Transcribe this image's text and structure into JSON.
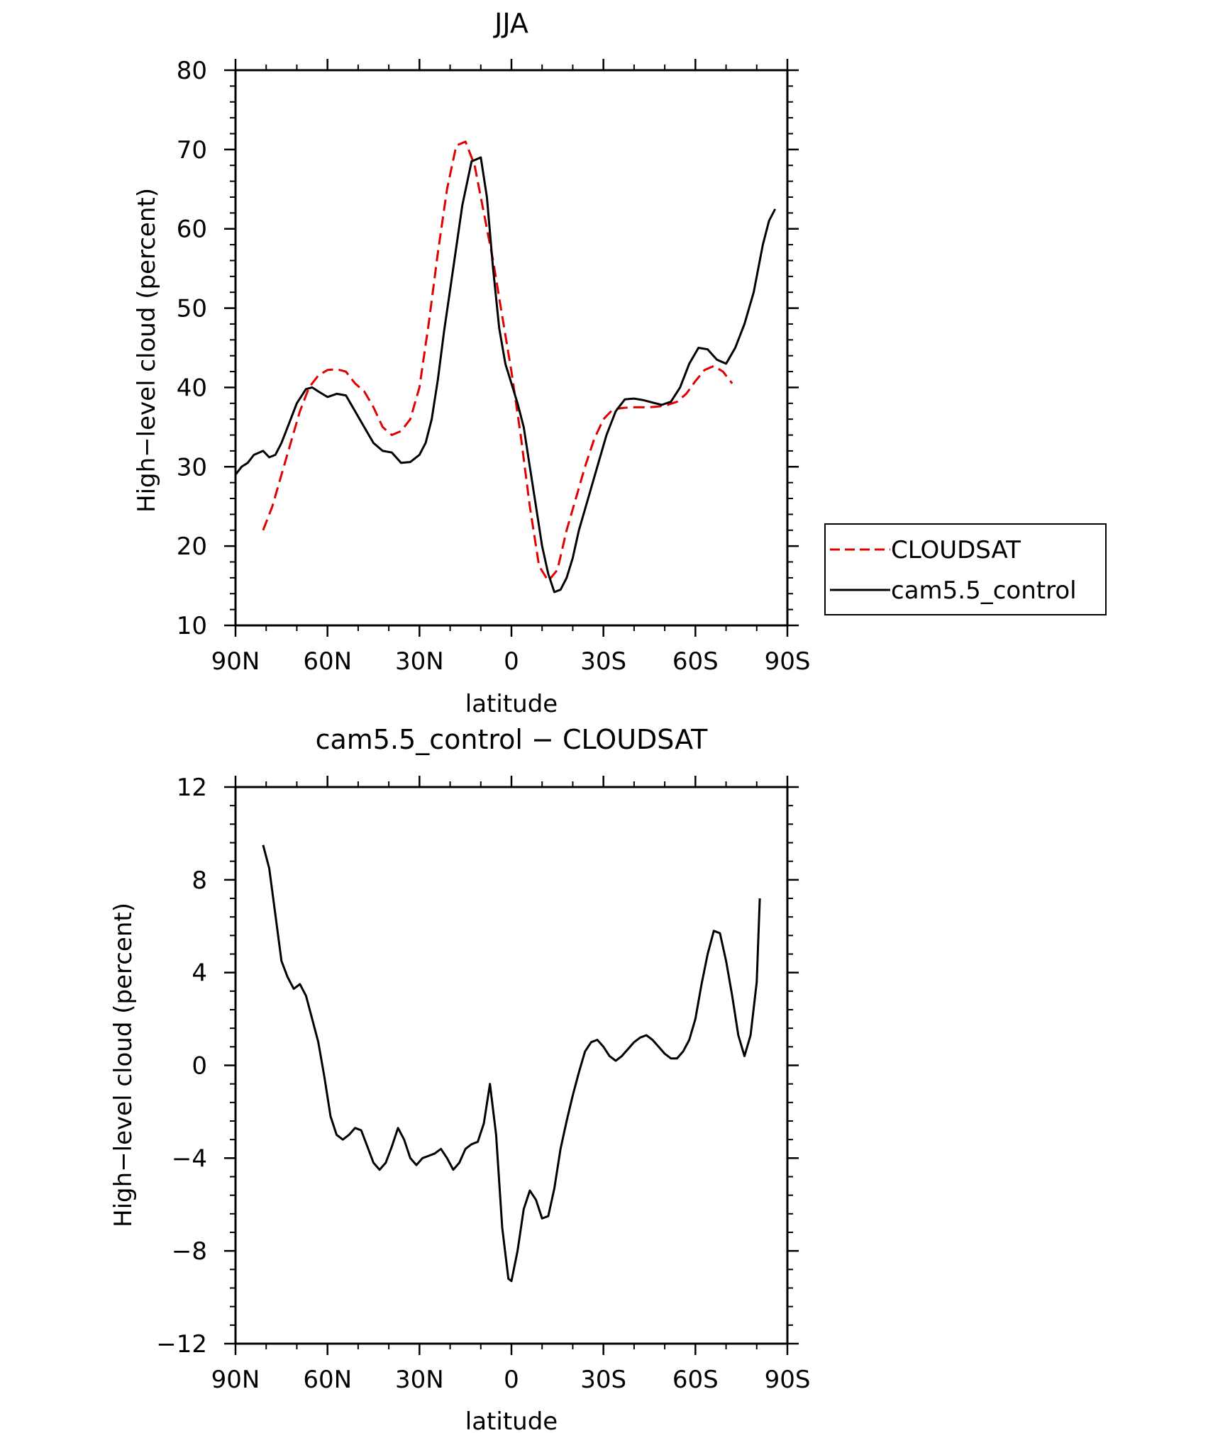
{
  "colors": {
    "axis": "#000000",
    "cloudsat": "#e00000",
    "model": "#000000"
  },
  "chart_data": [
    {
      "type": "line",
      "title": "JJA",
      "xlabel": "latitude",
      "ylabel": "High−level cloud (percent)",
      "xlim": [
        90,
        -90
      ],
      "ylim": [
        10,
        80
      ],
      "xticks": [
        90,
        60,
        30,
        0,
        -30,
        -60,
        -90
      ],
      "xtick_labels": [
        "90N",
        "60N",
        "30N",
        "0",
        "30S",
        "60S",
        "90S"
      ],
      "yticks": [
        10,
        20,
        30,
        40,
        50,
        60,
        70,
        80
      ],
      "ytick_labels": [
        "10",
        "20",
        "30",
        "40",
        "50",
        "60",
        "70",
        "80"
      ],
      "legend_position": "right",
      "series": [
        {
          "name": "CLOUDSAT",
          "color": "#e00000",
          "dash": "dashed",
          "x": [
            81,
            78,
            75,
            72,
            69,
            66,
            63,
            60,
            57,
            54,
            51,
            48,
            45,
            42,
            39,
            36,
            33,
            30,
            27,
            24,
            21,
            18,
            15,
            12,
            9,
            6,
            3,
            0,
            -3,
            -6,
            -9,
            -12,
            -15,
            -18,
            -21,
            -24,
            -27,
            -30,
            -33,
            -36,
            -39,
            -42,
            -45,
            -48,
            -51,
            -54,
            -57,
            -60,
            -63,
            -66,
            -69,
            -72,
            -75,
            -78,
            -81
          ],
          "y": [
            22,
            25,
            29,
            33,
            37,
            40,
            41.5,
            42.2,
            42.3,
            42,
            40.5,
            39.5,
            37.5,
            35,
            34,
            34.5,
            36,
            40,
            48,
            57,
            65,
            70.5,
            71,
            68,
            62,
            56,
            49,
            42,
            34,
            25,
            17.5,
            15.6,
            17,
            22,
            26,
            30,
            33.5,
            36,
            37.2,
            37.4,
            37.5,
            37.5,
            37.5,
            37.6,
            37.8,
            38.2,
            39.2,
            40.8,
            42.2,
            42.7,
            42,
            40.5,
            null,
            null,
            null
          ]
        },
        {
          "name": "cam5.5_control",
          "color": "#000000",
          "dash": "solid",
          "x": [
            90,
            88,
            86,
            84,
            81,
            79,
            77,
            75,
            72,
            70,
            67,
            65,
            63,
            60,
            57,
            54,
            51,
            48,
            45,
            42,
            39,
            36,
            33,
            30,
            28,
            26,
            24,
            22,
            19,
            16,
            13,
            10,
            8,
            6,
            4,
            2,
            0,
            -2,
            -4,
            -6,
            -8,
            -10,
            -12,
            -14,
            -16,
            -18,
            -20,
            -22,
            -25,
            -28,
            -31,
            -34,
            -37,
            -40,
            -43,
            -46,
            -49,
            -52,
            -55,
            -58,
            -61,
            -64,
            -67,
            -70,
            -73,
            -76,
            -79,
            -82,
            -84,
            -86,
            -88,
            -89
          ],
          "y": [
            29,
            30,
            30.5,
            31.5,
            32,
            31.2,
            31.5,
            33,
            36,
            38,
            39.8,
            40,
            39.5,
            38.8,
            39.2,
            39,
            37,
            35,
            33,
            32,
            31.8,
            30.5,
            30.6,
            31.5,
            33,
            36,
            41,
            47,
            55,
            63,
            68.5,
            69,
            64,
            55,
            47.5,
            43,
            40.5,
            38,
            35,
            30,
            25,
            20,
            16.5,
            14.2,
            14.5,
            16,
            18.5,
            22,
            26,
            30,
            34,
            37,
            38.5,
            38.6,
            38.4,
            38.1,
            37.8,
            38.2,
            40,
            43,
            45,
            44.8,
            43.5,
            43,
            45,
            48,
            52,
            58,
            61,
            62.5,
            null,
            null
          ]
        }
      ]
    },
    {
      "type": "line",
      "title": "cam5.5_control − CLOUDSAT",
      "xlabel": "latitude",
      "ylabel": "High−level cloud (percent)",
      "xlim": [
        90,
        -90
      ],
      "ylim": [
        -12,
        12
      ],
      "xticks": [
        90,
        60,
        30,
        0,
        -30,
        -60,
        -90
      ],
      "xtick_labels": [
        "90N",
        "60N",
        "30N",
        "0",
        "30S",
        "60S",
        "90S"
      ],
      "yticks": [
        -12,
        -8,
        -4,
        0,
        4,
        8,
        12
      ],
      "ytick_labels": [
        "−12",
        "−8",
        "−4",
        "0",
        "4",
        "8",
        "12"
      ],
      "series": [
        {
          "name": "",
          "color": "#000000",
          "dash": "solid",
          "x": [
            81,
            79,
            77,
            75,
            73,
            71,
            69,
            67,
            65,
            63,
            61,
            59,
            57,
            55,
            53,
            51,
            49,
            47,
            45,
            43,
            41,
            39,
            37,
            35,
            33,
            31,
            29,
            27,
            25,
            23,
            21,
            19,
            17,
            15,
            13,
            11,
            9,
            7,
            5,
            3,
            1,
            0,
            -2,
            -4,
            -6,
            -8,
            -10,
            -12,
            -14,
            -16,
            -18,
            -20,
            -22,
            -24,
            -26,
            -28,
            -30,
            -32,
            -34,
            -36,
            -38,
            -40,
            -42,
            -44,
            -46,
            -48,
            -50,
            -52,
            -54,
            -56,
            -58,
            -60,
            -62,
            -64,
            -66,
            -68,
            -70,
            -72,
            -74,
            -76,
            -78,
            -80,
            -81
          ],
          "y": [
            9.5,
            8.5,
            6.5,
            4.5,
            3.8,
            3.3,
            3.5,
            3.0,
            2.0,
            1.0,
            -0.5,
            -2.2,
            -3.0,
            -3.2,
            -3.0,
            -2.7,
            -2.8,
            -3.5,
            -4.2,
            -4.5,
            -4.2,
            -3.5,
            -2.7,
            -3.2,
            -4.0,
            -4.3,
            -4.0,
            -3.9,
            -3.8,
            -3.6,
            -4.0,
            -4.5,
            -4.2,
            -3.6,
            -3.4,
            -3.3,
            -2.5,
            -0.8,
            -3.0,
            -7.0,
            -9.2,
            -9.3,
            -8.0,
            -6.2,
            -5.4,
            -5.8,
            -6.6,
            -6.5,
            -5.3,
            -3.6,
            -2.4,
            -1.3,
            -0.3,
            0.6,
            1.0,
            1.1,
            0.8,
            0.4,
            0.2,
            0.4,
            0.7,
            1.0,
            1.2,
            1.3,
            1.1,
            0.8,
            0.5,
            0.3,
            0.3,
            0.6,
            1.1,
            2.0,
            3.5,
            4.8,
            5.8,
            5.7,
            4.5,
            3.0,
            1.3,
            0.4,
            1.3,
            3.6,
            7.2
          ]
        }
      ]
    }
  ]
}
